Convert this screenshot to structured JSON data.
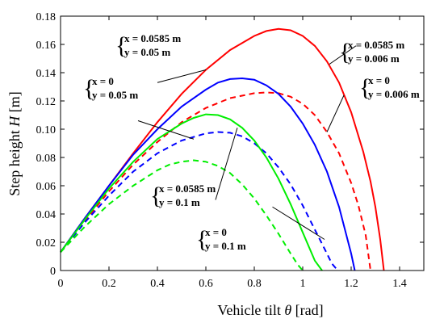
{
  "chart_data": {
    "type": "line",
    "xlabel_text": "Vehicle tilt",
    "xlabel_symbol": "θ",
    "xlabel_unit": "[rad]",
    "ylabel_text": "Step height",
    "ylabel_symbol": "H",
    "ylabel_unit": "[m]",
    "xlim": [
      0,
      1.5
    ],
    "ylim": [
      0,
      0.18
    ],
    "xticks": [
      0,
      0.2,
      0.4,
      0.6,
      0.8,
      1,
      1.2,
      1.4
    ],
    "xtick_labels": [
      "0",
      "0.2",
      "0.4",
      "0.6",
      "0.8",
      "1",
      "1.2",
      "1.4"
    ],
    "yticks": [
      0,
      0.02,
      0.04,
      0.06,
      0.08,
      0.1,
      0.12,
      0.14,
      0.16,
      0.18
    ],
    "ytick_labels": [
      "0",
      "0.02",
      "0.04",
      "0.06",
      "0.08",
      "0.10",
      "0.12",
      "0.14",
      "0.16",
      "0.18"
    ],
    "grid": false,
    "series": [
      {
        "color": "#ff0000",
        "dash": "solid",
        "x": [
          0,
          0.1,
          0.2,
          0.3,
          0.4,
          0.5,
          0.6,
          0.7,
          0.8,
          0.85,
          0.9,
          0.95,
          1.0,
          1.05,
          1.1,
          1.15,
          1.2,
          1.25,
          1.28,
          1.3,
          1.32,
          1.335
        ],
        "y": [
          0.013,
          0.037,
          0.06,
          0.083,
          0.105,
          0.125,
          0.142,
          0.156,
          0.166,
          0.1695,
          0.171,
          0.17,
          0.166,
          0.159,
          0.148,
          0.133,
          0.112,
          0.084,
          0.063,
          0.045,
          0.022,
          0
        ]
      },
      {
        "color": "#ff0000",
        "dash": "dashed",
        "x": [
          0,
          0.1,
          0.2,
          0.3,
          0.4,
          0.5,
          0.6,
          0.7,
          0.8,
          0.85,
          0.9,
          0.95,
          1.0,
          1.05,
          1.1,
          1.15,
          1.2,
          1.23,
          1.26,
          1.28
        ],
        "y": [
          0.013,
          0.035,
          0.056,
          0.075,
          0.091,
          0.105,
          0.115,
          0.122,
          0.1255,
          0.126,
          0.1255,
          0.123,
          0.118,
          0.11,
          0.098,
          0.083,
          0.062,
          0.046,
          0.025,
          0
        ]
      },
      {
        "color": "#0000ff",
        "dash": "solid",
        "x": [
          0,
          0.1,
          0.2,
          0.3,
          0.4,
          0.5,
          0.6,
          0.65,
          0.7,
          0.75,
          0.8,
          0.85,
          0.9,
          0.95,
          1.0,
          1.05,
          1.1,
          1.15,
          1.2,
          1.215
        ],
        "y": [
          0.013,
          0.037,
          0.06,
          0.082,
          0.1,
          0.116,
          0.128,
          0.133,
          0.1355,
          0.136,
          0.135,
          0.131,
          0.125,
          0.116,
          0.104,
          0.089,
          0.07,
          0.045,
          0.012,
          0
        ]
      },
      {
        "color": "#0000ff",
        "dash": "dashed",
        "x": [
          0,
          0.1,
          0.2,
          0.3,
          0.4,
          0.5,
          0.6,
          0.65,
          0.7,
          0.75,
          0.8,
          0.85,
          0.9,
          0.95,
          1.0,
          1.05,
          1.1,
          1.12,
          1.145
        ],
        "y": [
          0.013,
          0.034,
          0.053,
          0.07,
          0.083,
          0.092,
          0.097,
          0.098,
          0.0975,
          0.095,
          0.09,
          0.083,
          0.073,
          0.061,
          0.046,
          0.029,
          0.012,
          0.005,
          0
        ]
      },
      {
        "color": "#00ee00",
        "dash": "solid",
        "x": [
          0,
          0.1,
          0.2,
          0.3,
          0.4,
          0.5,
          0.55,
          0.6,
          0.65,
          0.7,
          0.75,
          0.8,
          0.85,
          0.9,
          0.95,
          1.0,
          1.05,
          1.08
        ],
        "y": [
          0.013,
          0.036,
          0.058,
          0.077,
          0.093,
          0.104,
          0.108,
          0.1105,
          0.11,
          0.107,
          0.101,
          0.092,
          0.08,
          0.065,
          0.047,
          0.027,
          0.007,
          0
        ]
      },
      {
        "color": "#00ee00",
        "dash": "dashed",
        "x": [
          0,
          0.1,
          0.2,
          0.3,
          0.4,
          0.45,
          0.5,
          0.55,
          0.6,
          0.65,
          0.7,
          0.75,
          0.8,
          0.85,
          0.9,
          0.95,
          0.98,
          1.0
        ],
        "y": [
          0.013,
          0.031,
          0.047,
          0.06,
          0.071,
          0.075,
          0.077,
          0.078,
          0.077,
          0.074,
          0.069,
          0.061,
          0.051,
          0.039,
          0.026,
          0.012,
          0.004,
          0
        ]
      }
    ],
    "annotations": [
      {
        "line1": "x = 0.0585 m",
        "line2": "y = 0.05 m",
        "color": "#ff0000",
        "arrow_from": [
          0.4,
          0.133
        ],
        "arrow_to": [
          0.6,
          0.142
        ]
      },
      {
        "line1": "x = 0",
        "line2": "y = 0.05 m",
        "color": "#0000ff",
        "arrow_from": [
          0.32,
          0.106
        ],
        "arrow_to": [
          0.55,
          0.093
        ]
      },
      {
        "line1": "x = 0.0585 m",
        "line2": "y = 0.1 m",
        "color": "#00ee00",
        "arrow_from": [
          0.64,
          0.05
        ],
        "arrow_to": [
          0.73,
          0.101
        ]
      },
      {
        "line1": "x = 0",
        "line2": "y = 0.1 m",
        "color": "#00ee00",
        "arrow_from": [
          1.09,
          0.022
        ],
        "arrow_to": [
          0.875,
          0.045
        ]
      },
      {
        "line1": "x = 0.0585 m",
        "line2": "y = 0.006 m",
        "color": "#ff0000",
        "arrow_from": [
          1.22,
          0.159
        ],
        "arrow_to": [
          1.11,
          0.146
        ]
      },
      {
        "line1": "x = 0",
        "line2": "y = 0.006 m",
        "color": "#ff0000",
        "arrow_from": [
          1.17,
          0.124
        ],
        "arrow_to": [
          1.1,
          0.098
        ]
      }
    ]
  }
}
